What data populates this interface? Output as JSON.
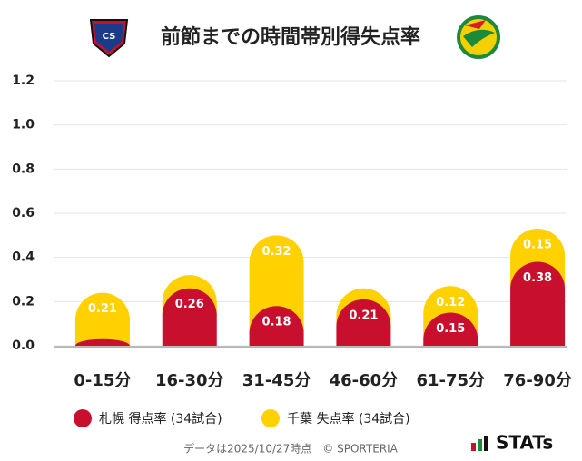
{
  "chart_data": {
    "type": "stacked_bar",
    "title": "前節までの時間帯別得失点率",
    "categories": [
      "0-15分",
      "16-30分",
      "31-45分",
      "46-60分",
      "61-75分",
      "76-90分"
    ],
    "series": [
      {
        "name": "札幌 得点率 (34試合)",
        "color": "#c8102e",
        "values": [
          0.03,
          0.26,
          0.18,
          0.21,
          0.15,
          0.38
        ],
        "value_labels": [
          null,
          "0.26",
          "0.18",
          "0.21",
          "0.15",
          "0.38"
        ]
      },
      {
        "name": "千葉 失点率 (34試合)",
        "color": "#ffd100",
        "values": [
          0.21,
          0.06,
          0.32,
          0.05,
          0.12,
          0.15
        ],
        "value_labels": [
          "0.21",
          null,
          "0.32",
          null,
          "0.12",
          "0.15"
        ]
      }
    ],
    "ylim": [
      0,
      1.2
    ],
    "yticks": [
      {
        "value": 0,
        "label": "0.0"
      },
      0.2,
      0.4,
      0.6,
      0.8,
      {
        "value": 1,
        "label": "1.0"
      },
      1.2
    ],
    "grid": true,
    "footer": "データは2025/10/27時点　© SPORTERIA",
    "brand": "STATs"
  }
}
